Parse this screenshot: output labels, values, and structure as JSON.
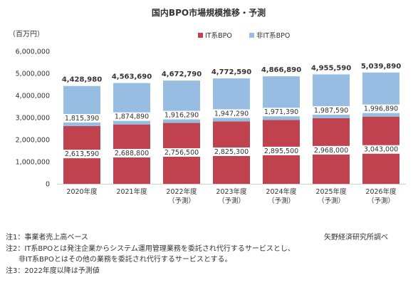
{
  "chart_data": {
    "type": "bar",
    "stacked": true,
    "title": "国内BPO市場規模推移・予測",
    "unit": "（百万円）",
    "categories": [
      [
        "2020年度"
      ],
      [
        "2021年度"
      ],
      [
        "2022年度",
        "（予測）"
      ],
      [
        "2023年度",
        "（予測）"
      ],
      [
        "2024年度",
        "（予測）"
      ],
      [
        "2025年度",
        "（予測）"
      ],
      [
        "2026年度",
        "（予測）"
      ]
    ],
    "series": [
      {
        "name": "IT系BPO",
        "color": "#c0424f",
        "values": [
          2613590,
          2688800,
          2756500,
          2825300,
          2895500,
          2968000,
          3043000
        ]
      },
      {
        "name": "非IT系BPO",
        "color": "#98bde3",
        "values": [
          1815390,
          1874890,
          1916290,
          1947290,
          1971390,
          1987590,
          1996890
        ]
      }
    ],
    "totals": [
      4428980,
      4563690,
      4672790,
      4772590,
      4866890,
      4955590,
      5039890
    ],
    "ylim": [
      0,
      6000000
    ],
    "yticks": [
      0,
      1000000,
      2000000,
      3000000,
      4000000,
      5000000,
      6000000
    ],
    "legend_position": "top-right",
    "grid": false
  },
  "notes": [
    "注1：事業者売上高ベース",
    "注2：IT系BPOとは発注企業からシステム運用管理業務を委託され代行するサービスとし、",
    "非IT系BPOとはその他の業務を委託され代行するサービスとする。",
    "注3：2022年度以降は予測値"
  ],
  "source": "矢野経済研究所調べ"
}
